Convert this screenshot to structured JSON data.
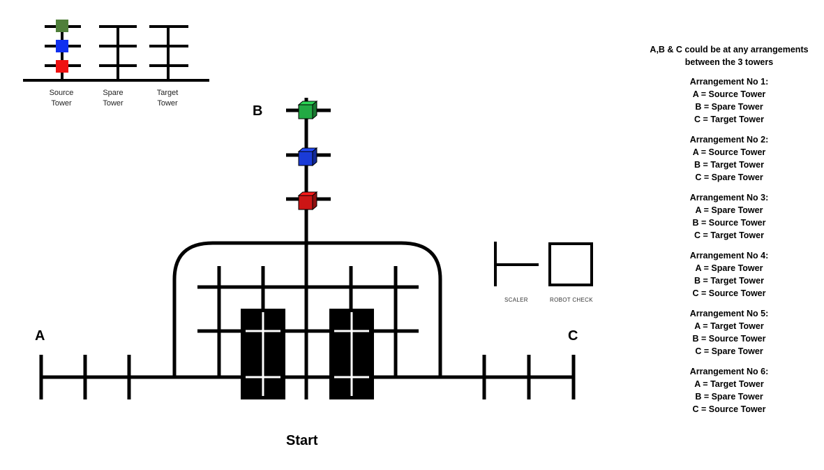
{
  "legend": {
    "towers": [
      {
        "line1": "Source",
        "line2": "Tower"
      },
      {
        "line1": "Spare",
        "line2": "Tower"
      },
      {
        "line1": "Target",
        "line2": "Tower"
      }
    ],
    "cube_colors": {
      "top": "#4f7f3a",
      "middle": "#1030f0",
      "bottom": "#ee1111"
    }
  },
  "field": {
    "label_a": "A",
    "label_b": "B",
    "label_c": "C",
    "start_label": "Start",
    "scaler_label": "SCALER",
    "robot_check_label": "ROBOT CHECK",
    "cube_colors": {
      "top": "#22aa44",
      "middle": "#1a3bd8",
      "bottom": "#cc1515"
    }
  },
  "notes": {
    "intro_line1": "A,B & C could be at any arrangements",
    "intro_line2": "between the 3 towers",
    "arrangements": [
      {
        "title": "Arrangement No 1:",
        "a": "A = Source Tower",
        "b": "B = Spare Tower",
        "c": "C = Target Tower"
      },
      {
        "title": "Arrangement No 2:",
        "a": "A = Source Tower",
        "b": "B = Target Tower",
        "c": "C = Spare Tower"
      },
      {
        "title": "Arrangement No 3:",
        "a": "A = Spare Tower",
        "b": "B = Source Tower",
        "c": "C = Target Tower"
      },
      {
        "title": "Arrangement No 4:",
        "a": "A = Spare Tower",
        "b": "B = Target Tower",
        "c": "C = Source Tower"
      },
      {
        "title": "Arrangement No 5:",
        "a": "A = Target Tower",
        "b": "B = Source Tower",
        "c": "C = Spare Tower"
      },
      {
        "title": "Arrangement No 6:",
        "a": "A = Target Tower",
        "b": "B = Spare Tower",
        "c": "C = Source Tower"
      }
    ]
  }
}
